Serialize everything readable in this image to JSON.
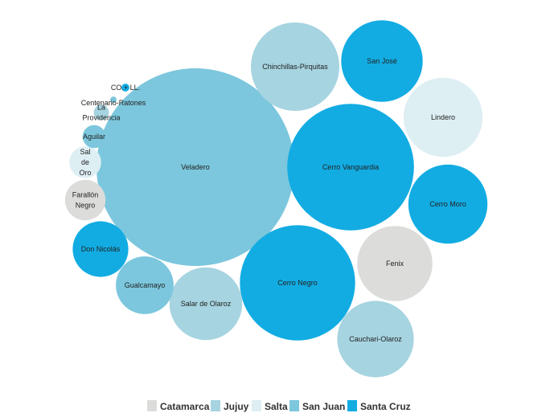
{
  "chart_data": {
    "type": "bubble",
    "title": "",
    "legend_position": "bottom-center",
    "categories": [
      {
        "name": "Catamarca",
        "color": "#dcdcda"
      },
      {
        "name": "Jujuy",
        "color": "#a6d4e0"
      },
      {
        "name": "Salta",
        "color": "#deeff3"
      },
      {
        "name": "San Juan",
        "color": "#7cc7dd"
      },
      {
        "name": "Santa Cruz",
        "color": "#12ace3"
      }
    ],
    "bubbles": [
      {
        "label": "Veladero",
        "category": "San Juan",
        "value": 100
      },
      {
        "label": "Cerro Vanguardia",
        "category": "Santa Cruz",
        "value": 41
      },
      {
        "label": "Cerro Negro",
        "category": "Santa Cruz",
        "value": 34
      },
      {
        "label": "Chinchillas-Pirquitas",
        "category": "Jujuy",
        "value": 20
      },
      {
        "label": "Lindero",
        "category": "Salta",
        "value": 16
      },
      {
        "label": "San José",
        "category": "Santa Cruz",
        "value": 17
      },
      {
        "label": "Cerro Moro",
        "category": "Santa Cruz",
        "value": 16
      },
      {
        "label": "Fenix",
        "category": "Catamarca",
        "value": 14.5
      },
      {
        "label": "Cauchari-Olaroz",
        "category": "Jujuy",
        "value": 15
      },
      {
        "label": "Salar de Olaroz",
        "category": "Jujuy",
        "value": 13.5
      },
      {
        "label": "Gualcamayo",
        "category": "San Juan",
        "value": 8.5
      },
      {
        "label": "Don Nicolás",
        "category": "Santa Cruz",
        "value": 7.9
      },
      {
        "label": "Farallón Negro",
        "category": "Catamarca",
        "value": 4.2
      },
      {
        "label": "Sal de Oro",
        "category": "Salta",
        "value": 2.6
      },
      {
        "label": "Aguilar",
        "category": "San Juan",
        "value": 1.35
      },
      {
        "label": "La Providencia",
        "category": "Jujuy",
        "value": 0.6
      },
      {
        "label": "Centenario-Ratones",
        "category": "San Juan",
        "value": 0.1
      },
      {
        "label": "CO.+ LL.",
        "category": "Santa Cruz",
        "value": 0.16
      }
    ]
  }
}
